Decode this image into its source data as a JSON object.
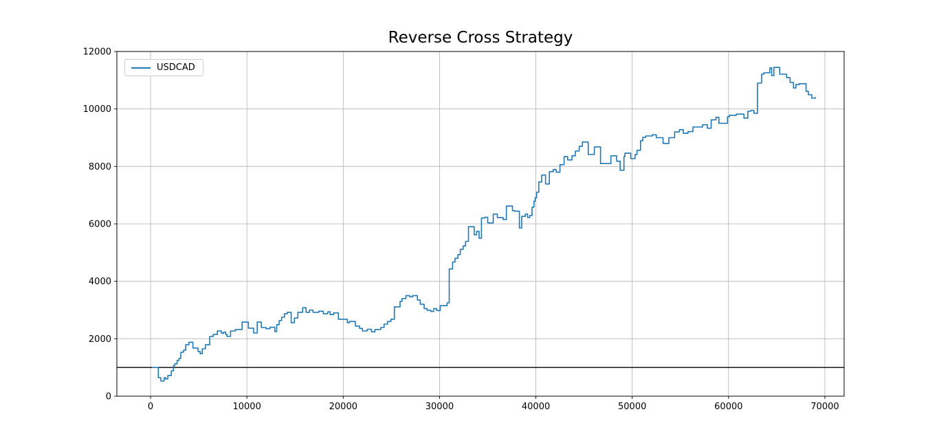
{
  "window": {
    "title": "Reverse Cross Strategy"
  },
  "chart_data": {
    "type": "line",
    "title": "Reverse Cross Strategy",
    "xlabel": "",
    "ylabel": "",
    "grid": true,
    "legend": {
      "position": "upper-left",
      "entries": [
        "USDCAD"
      ]
    },
    "xlim": [
      -3500,
      72000
    ],
    "ylim": [
      0,
      12000
    ],
    "xticks": [
      0,
      10000,
      20000,
      30000,
      40000,
      50000,
      60000,
      70000
    ],
    "xtick_labels": [
      "0",
      "10000",
      "20000",
      "30000",
      "40000",
      "50000",
      "60000",
      "70000"
    ],
    "yticks": [
      0,
      2000,
      4000,
      6000,
      8000,
      10000,
      12000
    ],
    "ytick_labels": [
      "0",
      "2000",
      "4000",
      "6000",
      "8000",
      "10000",
      "12000"
    ],
    "baseline": 1000,
    "colors": {
      "line": "#1f77b4",
      "grid": "#b0b0b0",
      "baseline": "#000000",
      "spine": "#000000",
      "background": "#ffffff"
    },
    "series": [
      {
        "name": "USDCAD",
        "step": "after",
        "points": [
          [
            140,
            1000
          ],
          [
            800,
            645
          ],
          [
            1070,
            525
          ],
          [
            1400,
            645
          ],
          [
            1550,
            600
          ],
          [
            1790,
            720
          ],
          [
            2150,
            885
          ],
          [
            2380,
            1060
          ],
          [
            2500,
            1125
          ],
          [
            2750,
            1245
          ],
          [
            2950,
            1315
          ],
          [
            3140,
            1530
          ],
          [
            3420,
            1600
          ],
          [
            3640,
            1790
          ],
          [
            3980,
            1880
          ],
          [
            4400,
            1675
          ],
          [
            4930,
            1555
          ],
          [
            5150,
            1480
          ],
          [
            5360,
            1650
          ],
          [
            5700,
            1790
          ],
          [
            6140,
            2080
          ],
          [
            6500,
            2150
          ],
          [
            6930,
            2270
          ],
          [
            7360,
            2190
          ],
          [
            7570,
            2230
          ],
          [
            7800,
            2150
          ],
          [
            7930,
            2080
          ],
          [
            8300,
            2270
          ],
          [
            8800,
            2320
          ],
          [
            9500,
            2580
          ],
          [
            10150,
            2370
          ],
          [
            10700,
            2200
          ],
          [
            11070,
            2580
          ],
          [
            11500,
            2390
          ],
          [
            12000,
            2350
          ],
          [
            12400,
            2400
          ],
          [
            12900,
            2250
          ],
          [
            13100,
            2490
          ],
          [
            13350,
            2630
          ],
          [
            13600,
            2750
          ],
          [
            13900,
            2870
          ],
          [
            14200,
            2920
          ],
          [
            14600,
            2560
          ],
          [
            14930,
            2720
          ],
          [
            15290,
            2920
          ],
          [
            15790,
            3080
          ],
          [
            16140,
            2920
          ],
          [
            16500,
            3000
          ],
          [
            16860,
            2920
          ],
          [
            17470,
            2960
          ],
          [
            17930,
            2870
          ],
          [
            18400,
            2940
          ],
          [
            18640,
            2840
          ],
          [
            19000,
            2900
          ],
          [
            19500,
            2680
          ],
          [
            20430,
            2560
          ],
          [
            20640,
            2600
          ],
          [
            21260,
            2440
          ],
          [
            21700,
            2360
          ],
          [
            22000,
            2270
          ],
          [
            22500,
            2330
          ],
          [
            22930,
            2240
          ],
          [
            23290,
            2320
          ],
          [
            23890,
            2390
          ],
          [
            24240,
            2510
          ],
          [
            24600,
            2600
          ],
          [
            24950,
            2680
          ],
          [
            25310,
            3110
          ],
          [
            25900,
            3300
          ],
          [
            26100,
            3400
          ],
          [
            26500,
            3500
          ],
          [
            26900,
            3460
          ],
          [
            27200,
            3500
          ],
          [
            27700,
            3350
          ],
          [
            28000,
            3200
          ],
          [
            28400,
            3050
          ],
          [
            28700,
            2990
          ],
          [
            29100,
            2950
          ],
          [
            29400,
            3050
          ],
          [
            29700,
            2980
          ],
          [
            30070,
            3150
          ],
          [
            30780,
            3250
          ],
          [
            31000,
            4430
          ],
          [
            31350,
            4670
          ],
          [
            31600,
            4800
          ],
          [
            31900,
            4930
          ],
          [
            32150,
            5110
          ],
          [
            32450,
            5230
          ],
          [
            32700,
            5390
          ],
          [
            33000,
            5900
          ],
          [
            33600,
            5620
          ],
          [
            33850,
            5740
          ],
          [
            34100,
            5500
          ],
          [
            34350,
            6200
          ],
          [
            34700,
            6230
          ],
          [
            35000,
            6030
          ],
          [
            35570,
            6340
          ],
          [
            36000,
            6220
          ],
          [
            36600,
            6150
          ],
          [
            36930,
            6620
          ],
          [
            37570,
            6460
          ],
          [
            37810,
            6440
          ],
          [
            38290,
            5860
          ],
          [
            38530,
            6260
          ],
          [
            38900,
            6340
          ],
          [
            39140,
            6220
          ],
          [
            39360,
            6290
          ],
          [
            39600,
            6580
          ],
          [
            39800,
            6790
          ],
          [
            39930,
            6910
          ],
          [
            40070,
            7100
          ],
          [
            40300,
            7460
          ],
          [
            40600,
            7700
          ],
          [
            41000,
            7390
          ],
          [
            41400,
            7815
          ],
          [
            41800,
            7890
          ],
          [
            42100,
            7800
          ],
          [
            42500,
            8060
          ],
          [
            42930,
            8340
          ],
          [
            43300,
            8225
          ],
          [
            43750,
            8370
          ],
          [
            44100,
            8535
          ],
          [
            44500,
            8700
          ],
          [
            44830,
            8850
          ],
          [
            45430,
            8415
          ],
          [
            46070,
            8680
          ],
          [
            46710,
            8100
          ],
          [
            47790,
            8370
          ],
          [
            48390,
            8180
          ],
          [
            48750,
            7865
          ],
          [
            49140,
            8340
          ],
          [
            49240,
            8460
          ],
          [
            49850,
            8270
          ],
          [
            50300,
            8415
          ],
          [
            50500,
            8560
          ],
          [
            50860,
            8890
          ],
          [
            51100,
            9010
          ],
          [
            51400,
            9060
          ],
          [
            52100,
            9100
          ],
          [
            52500,
            9000
          ],
          [
            53200,
            8800
          ],
          [
            53800,
            9000
          ],
          [
            54400,
            9200
          ],
          [
            54900,
            9280
          ],
          [
            55300,
            9150
          ],
          [
            55790,
            9210
          ],
          [
            56300,
            9370
          ],
          [
            57300,
            9450
          ],
          [
            57800,
            9330
          ],
          [
            58200,
            9620
          ],
          [
            58700,
            9710
          ],
          [
            59000,
            9500
          ],
          [
            59900,
            9730
          ],
          [
            60100,
            9780
          ],
          [
            60800,
            9820
          ],
          [
            61600,
            9680
          ],
          [
            62000,
            9920
          ],
          [
            62300,
            9945
          ],
          [
            62640,
            9850
          ],
          [
            63000,
            10900
          ],
          [
            63430,
            11210
          ],
          [
            63670,
            11260
          ],
          [
            64290,
            11430
          ],
          [
            64480,
            11160
          ],
          [
            64710,
            11445
          ],
          [
            65310,
            11210
          ],
          [
            66030,
            11090
          ],
          [
            66390,
            10925
          ],
          [
            66740,
            10730
          ],
          [
            67000,
            10850
          ],
          [
            67340,
            10880
          ],
          [
            68050,
            10615
          ],
          [
            68290,
            10495
          ],
          [
            68640,
            10375
          ],
          [
            69000,
            10420
          ]
        ]
      }
    ]
  }
}
